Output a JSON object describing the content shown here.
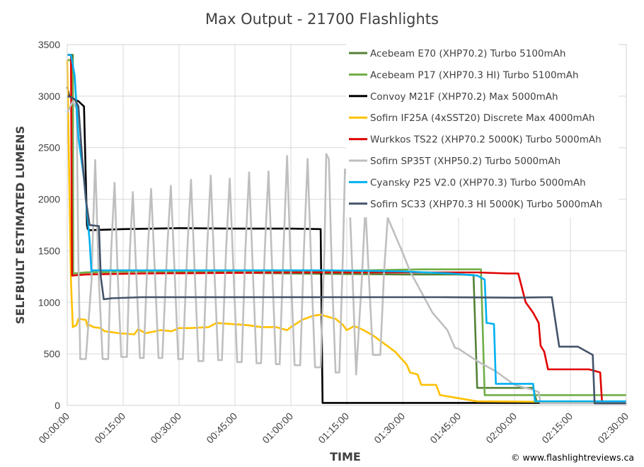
{
  "chart_data": {
    "type": "line",
    "title": "Max Output - 21700 Flashlights",
    "xlabel": "TIME",
    "ylabel": "SELFBUILT ESTIMATED LUMENS",
    "xlim_minutes": [
      0,
      150
    ],
    "ylim": [
      0,
      3500
    ],
    "yticks": [
      0,
      500,
      1000,
      1500,
      2000,
      2500,
      3000,
      3500
    ],
    "xticks": [
      "00:00:00",
      "00:15:00",
      "00:30:00",
      "00:45:00",
      "01:00:00",
      "01:15:00",
      "01:30:00",
      "01:45:00",
      "02:00:00",
      "02:15:00",
      "02:30:00"
    ],
    "grid": true,
    "legend_position": "top-right",
    "credit": "© www.flashlightreviews.ca",
    "series": [
      {
        "name": "Acebeam E70 (XHP70.2) Turbo 5100mAh",
        "color": "#548235",
        "points": [
          [
            0,
            3400
          ],
          [
            1.5,
            3400
          ],
          [
            1.6,
            1280
          ],
          [
            5,
            1290
          ],
          [
            20,
            1300
          ],
          [
            40,
            1290
          ],
          [
            60,
            1280
          ],
          [
            75,
            1275
          ],
          [
            90,
            1270
          ],
          [
            105,
            1270
          ],
          [
            109,
            1265
          ],
          [
            110,
            170
          ],
          [
            125,
            170
          ],
          [
            126,
            30
          ],
          [
            150,
            30
          ]
        ]
      },
      {
        "name": "Acebeam P17 (XHP70.3 HI) Turbo 5100mAh",
        "color": "#70AD47",
        "points": [
          [
            0,
            3350
          ],
          [
            1.5,
            3350
          ],
          [
            1.6,
            1280
          ],
          [
            5,
            1290
          ],
          [
            20,
            1300
          ],
          [
            40,
            1300
          ],
          [
            60,
            1300
          ],
          [
            80,
            1310
          ],
          [
            95,
            1320
          ],
          [
            105,
            1320
          ],
          [
            111,
            1320
          ],
          [
            112,
            100
          ],
          [
            150,
            100
          ]
        ]
      },
      {
        "name": "Convoy M21F (XHP70.2) Max 5000mAh",
        "color": "#000000",
        "points": [
          [
            0,
            3090
          ],
          [
            0.5,
            3000
          ],
          [
            3,
            2950
          ],
          [
            4.5,
            2900
          ],
          [
            5.3,
            1750
          ],
          [
            5.5,
            1710
          ],
          [
            6,
            1700
          ],
          [
            15,
            1710
          ],
          [
            30,
            1720
          ],
          [
            45,
            1715
          ],
          [
            60,
            1715
          ],
          [
            68,
            1710
          ],
          [
            68.5,
            25
          ],
          [
            150,
            25
          ]
        ]
      },
      {
        "name": "Sofirn IF25A (4xSST20) Discrete Max 4000mAh",
        "color": "#FFC000",
        "points": [
          [
            0,
            3350
          ],
          [
            1,
            1200
          ],
          [
            1.5,
            760
          ],
          [
            2.5,
            780
          ],
          [
            3,
            840
          ],
          [
            5,
            830
          ],
          [
            5.5,
            760
          ],
          [
            6,
            780
          ],
          [
            7,
            760
          ],
          [
            9,
            750
          ],
          [
            10,
            720
          ],
          [
            14,
            700
          ],
          [
            18,
            690
          ],
          [
            19,
            740
          ],
          [
            21,
            700
          ],
          [
            25,
            730
          ],
          [
            28,
            720
          ],
          [
            30,
            750
          ],
          [
            33,
            750
          ],
          [
            38,
            760
          ],
          [
            40,
            800
          ],
          [
            44,
            790
          ],
          [
            48,
            780
          ],
          [
            52,
            760
          ],
          [
            56,
            760
          ],
          [
            59,
            730
          ],
          [
            60,
            760
          ],
          [
            63,
            830
          ],
          [
            66,
            870
          ],
          [
            68,
            880
          ],
          [
            70,
            860
          ],
          [
            72,
            840
          ],
          [
            74,
            780
          ],
          [
            75,
            730
          ],
          [
            77,
            770
          ],
          [
            79,
            740
          ],
          [
            82,
            680
          ],
          [
            85,
            600
          ],
          [
            88,
            520
          ],
          [
            90,
            440
          ],
          [
            91,
            400
          ],
          [
            92,
            320
          ],
          [
            94,
            300
          ],
          [
            95,
            200
          ],
          [
            99,
            200
          ],
          [
            100,
            100
          ],
          [
            110,
            40
          ],
          [
            150,
            30
          ]
        ]
      },
      {
        "name": "Wurkkos TS22 (XHP70.2 5000K) Turbo 5000mAh",
        "color": "#E00000",
        "points": [
          [
            0,
            3400
          ],
          [
            1,
            3400
          ],
          [
            1.3,
            1260
          ],
          [
            5,
            1270
          ],
          [
            20,
            1280
          ],
          [
            40,
            1285
          ],
          [
            60,
            1290
          ],
          [
            80,
            1290
          ],
          [
            95,
            1290
          ],
          [
            110,
            1290
          ],
          [
            118,
            1280
          ],
          [
            121,
            1280
          ],
          [
            123,
            1000
          ],
          [
            125,
            900
          ],
          [
            126.5,
            800
          ],
          [
            127,
            580
          ],
          [
            128,
            520
          ],
          [
            129,
            350
          ],
          [
            140,
            350
          ],
          [
            143,
            320
          ],
          [
            143.5,
            20
          ],
          [
            150,
            20
          ]
        ]
      },
      {
        "name": "Sofirn SP35T (XHP50.2) Turbo 5000mAh",
        "color": "#BFBFBF",
        "points": [
          [
            0,
            2840
          ],
          [
            1.5,
            2950
          ],
          [
            2.5,
            2880
          ],
          [
            3,
            1400
          ],
          [
            3.5,
            450
          ],
          [
            5,
            450
          ],
          [
            6.5,
            1200
          ],
          [
            7.5,
            2380
          ],
          [
            8.5,
            1200
          ],
          [
            9.5,
            450
          ],
          [
            11,
            450
          ],
          [
            11.8,
            1500
          ],
          [
            12.7,
            2160
          ],
          [
            13.5,
            1300
          ],
          [
            14.5,
            470
          ],
          [
            16,
            470
          ],
          [
            16.8,
            1500
          ],
          [
            17.6,
            2070
          ],
          [
            18.5,
            1300
          ],
          [
            19.5,
            460
          ],
          [
            20.5,
            460
          ],
          [
            21.6,
            1500
          ],
          [
            22.5,
            2100
          ],
          [
            23.5,
            1300
          ],
          [
            24.5,
            460
          ],
          [
            25.5,
            460
          ],
          [
            26.8,
            1500
          ],
          [
            27.8,
            2130
          ],
          [
            28.8,
            1300
          ],
          [
            29.8,
            450
          ],
          [
            31,
            450
          ],
          [
            32.2,
            1500
          ],
          [
            33.2,
            2190
          ],
          [
            34.2,
            1300
          ],
          [
            35.2,
            430
          ],
          [
            36.5,
            430
          ],
          [
            37.5,
            1500
          ],
          [
            38.5,
            2230
          ],
          [
            39.5,
            1300
          ],
          [
            40.5,
            440
          ],
          [
            41.5,
            440
          ],
          [
            42.6,
            1500
          ],
          [
            43.6,
            2200
          ],
          [
            44.6,
            1300
          ],
          [
            45.6,
            420
          ],
          [
            46.8,
            420
          ],
          [
            47.8,
            1500
          ],
          [
            48.8,
            2260
          ],
          [
            49.8,
            1300
          ],
          [
            50.8,
            410
          ],
          [
            52,
            410
          ],
          [
            53,
            1500
          ],
          [
            54,
            2270
          ],
          [
            55,
            1300
          ],
          [
            56,
            400
          ],
          [
            57,
            400
          ],
          [
            58,
            1500
          ],
          [
            59,
            2420
          ],
          [
            60,
            1300
          ],
          [
            61,
            390
          ],
          [
            62.5,
            390
          ],
          [
            63.5,
            1500
          ],
          [
            64.5,
            2390
          ],
          [
            65.5,
            1300
          ],
          [
            66.5,
            370
          ],
          [
            68,
            370
          ],
          [
            69,
            1500
          ],
          [
            69.5,
            2440
          ],
          [
            70.2,
            2390
          ],
          [
            71,
            1300
          ],
          [
            72,
            320
          ],
          [
            73,
            320
          ],
          [
            74,
            1500
          ],
          [
            74.5,
            2290
          ],
          [
            75.5,
            2200
          ],
          [
            76.5,
            1300
          ],
          [
            77.5,
            300
          ],
          [
            79,
            1200
          ],
          [
            80,
            1930
          ],
          [
            81,
            1200
          ],
          [
            82,
            490
          ],
          [
            84,
            490
          ],
          [
            85,
            1300
          ],
          [
            86,
            1820
          ],
          [
            88,
            1650
          ],
          [
            90,
            1480
          ],
          [
            92,
            1300
          ],
          [
            95,
            1100
          ],
          [
            98,
            900
          ],
          [
            102,
            730
          ],
          [
            104,
            560
          ],
          [
            105,
            550
          ],
          [
            110,
            430
          ],
          [
            115,
            330
          ],
          [
            120,
            200
          ],
          [
            125,
            150
          ],
          [
            126.5,
            130
          ],
          [
            127,
            20
          ],
          [
            150,
            20
          ]
        ]
      },
      {
        "name": "Cyansky P25 V2.0 (XHP70.3) Turbo 5000mAh",
        "color": "#00B0F0",
        "points": [
          [
            0,
            3400
          ],
          [
            1,
            3400
          ],
          [
            2,
            3200
          ],
          [
            3,
            2600
          ],
          [
            4.5,
            2200
          ],
          [
            5.5,
            1800
          ],
          [
            6,
            1600
          ],
          [
            6.5,
            1300
          ],
          [
            7,
            1310
          ],
          [
            15,
            1310
          ],
          [
            30,
            1310
          ],
          [
            50,
            1310
          ],
          [
            70,
            1310
          ],
          [
            90,
            1300
          ],
          [
            103,
            1280
          ],
          [
            110,
            1260
          ],
          [
            112,
            1220
          ],
          [
            112.5,
            800
          ],
          [
            114.5,
            790
          ],
          [
            115,
            210
          ],
          [
            125,
            210
          ],
          [
            125.5,
            40
          ],
          [
            150,
            40
          ]
        ]
      },
      {
        "name": "Sofirn SC33 (XHP70.3 HI 5000K) Turbo 5000mAh",
        "color": "#44546A",
        "points": [
          [
            0,
            3000
          ],
          [
            1,
            2990
          ],
          [
            2,
            2970
          ],
          [
            3,
            2900
          ],
          [
            4,
            2400
          ],
          [
            5,
            2000
          ],
          [
            6,
            1750
          ],
          [
            7,
            1745
          ],
          [
            8.5,
            1740
          ],
          [
            9,
            1250
          ],
          [
            9.8,
            1030
          ],
          [
            12,
            1040
          ],
          [
            20,
            1050
          ],
          [
            40,
            1050
          ],
          [
            60,
            1050
          ],
          [
            80,
            1050
          ],
          [
            100,
            1050
          ],
          [
            120,
            1045
          ],
          [
            130,
            1050
          ],
          [
            132,
            570
          ],
          [
            137,
            570
          ],
          [
            141,
            490
          ],
          [
            141.5,
            20
          ],
          [
            150,
            20
          ]
        ]
      }
    ]
  }
}
